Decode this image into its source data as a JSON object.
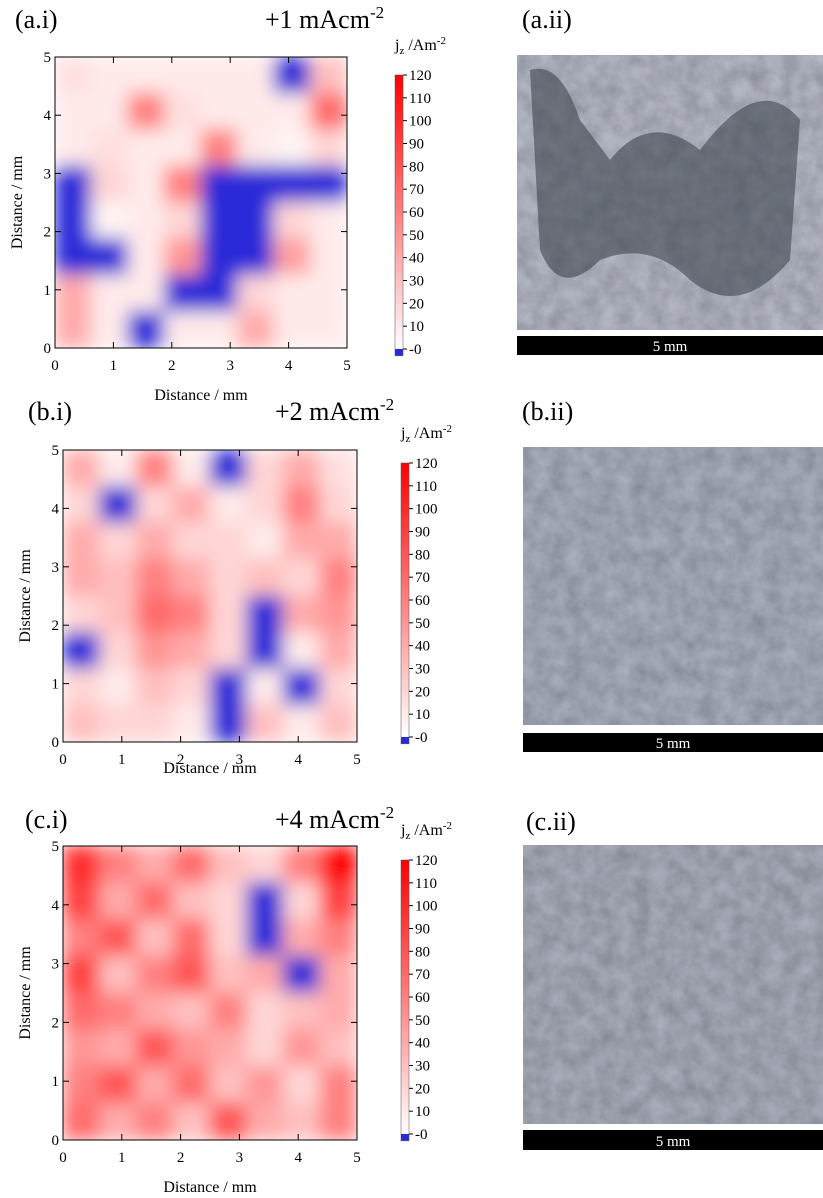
{
  "chart_data": [
    {
      "type": "heatmap",
      "panel_label": "(a.i)",
      "title": "+1 mAcm",
      "title_superscript": "-2",
      "xlabel": "Distance / mm",
      "ylabel": "Distance / mm",
      "xlim": [
        0,
        5
      ],
      "ylim": [
        0,
        5
      ],
      "xticks": [
        0,
        1,
        2,
        3,
        4,
        5
      ],
      "yticks": [
        0,
        1,
        2,
        3,
        4,
        5
      ],
      "z": [
        [
          15,
          10,
          10,
          10,
          10,
          10,
          -5,
          30
        ],
        [
          10,
          10,
          60,
          15,
          10,
          10,
          10,
          70
        ],
        [
          10,
          15,
          10,
          10,
          60,
          10,
          5,
          20
        ],
        [
          -8,
          20,
          10,
          60,
          -4,
          -10,
          -10,
          -8
        ],
        [
          -10,
          5,
          10,
          20,
          -5,
          -8,
          20,
          10
        ],
        [
          -8,
          -5,
          10,
          50,
          -5,
          -5,
          45,
          10
        ],
        [
          40,
          10,
          10,
          -5,
          -5,
          20,
          10,
          10
        ],
        [
          40,
          10,
          -3,
          10,
          10,
          40,
          10,
          10
        ]
      ],
      "colorbar": {
        "label": "j",
        "label_subscript": "z",
        "label_unit": " /Am",
        "label_superscript": "-2",
        "clim": [
          -3,
          120
        ],
        "ticks": [
          {
            "value": 0,
            "label": "-0"
          },
          10,
          20,
          30,
          40,
          50,
          60,
          70,
          80,
          90,
          100,
          110,
          120
        ],
        "colors": [
          "#2a2ad8",
          "#ffffff",
          "#ff0000"
        ]
      }
    },
    {
      "type": "heatmap",
      "panel_label": "(b.i)",
      "title": "+2 mAcm",
      "title_superscript": "-2",
      "xlabel": "Distance / mm",
      "ylabel": "Distance / mm",
      "xlim": [
        0,
        5
      ],
      "ylim": [
        0,
        5
      ],
      "xticks": [
        0,
        1,
        2,
        3,
        4,
        5
      ],
      "yticks": [
        0,
        1,
        2,
        3,
        4,
        5
      ],
      "z": [
        [
          40,
          10,
          60,
          10,
          -10,
          20,
          40,
          15
        ],
        [
          20,
          -10,
          20,
          40,
          10,
          20,
          60,
          20
        ],
        [
          40,
          20,
          40,
          20,
          20,
          10,
          40,
          40
        ],
        [
          40,
          30,
          60,
          40,
          20,
          30,
          20,
          60
        ],
        [
          20,
          30,
          70,
          60,
          20,
          -8,
          40,
          50
        ],
        [
          -5,
          20,
          50,
          40,
          20,
          -8,
          10,
          40
        ],
        [
          20,
          10,
          30,
          20,
          -8,
          10,
          -3,
          20
        ],
        [
          30,
          20,
          20,
          10,
          -8,
          30,
          10,
          30
        ]
      ],
      "colorbar": {
        "label": "j",
        "label_subscript": "z",
        "label_unit": " /Am",
        "label_superscript": "-2",
        "clim": [
          -3,
          120
        ],
        "ticks": [
          {
            "value": 0,
            "label": "-0"
          },
          10,
          20,
          30,
          40,
          50,
          60,
          70,
          80,
          90,
          100,
          110,
          120
        ],
        "colors": [
          "#2a2ad8",
          "#ffffff",
          "#ff0000"
        ]
      }
    },
    {
      "type": "heatmap",
      "panel_label": "(c.i)",
      "title": "+4 mAcm",
      "title_superscript": "-2",
      "xlabel": "Distance / mm",
      "ylabel": "Distance / mm",
      "xlim": [
        0,
        5
      ],
      "ylim": [
        0,
        5
      ],
      "xticks": [
        0,
        1,
        2,
        3,
        4,
        5
      ],
      "yticks": [
        0,
        1,
        2,
        3,
        4,
        5
      ],
      "z": [
        [
          100,
          60,
          40,
          70,
          30,
          20,
          60,
          120
        ],
        [
          90,
          40,
          70,
          30,
          20,
          -5,
          20,
          90
        ],
        [
          60,
          80,
          30,
          70,
          20,
          -5,
          40,
          60
        ],
        [
          90,
          30,
          60,
          80,
          30,
          40,
          -8,
          40
        ],
        [
          70,
          60,
          40,
          30,
          60,
          20,
          30,
          40
        ],
        [
          50,
          40,
          80,
          50,
          40,
          20,
          50,
          30
        ],
        [
          60,
          80,
          40,
          70,
          30,
          50,
          20,
          60
        ],
        [
          70,
          40,
          60,
          30,
          80,
          40,
          30,
          60
        ]
      ],
      "colorbar": {
        "label": "j",
        "label_subscript": "z",
        "label_unit": " /Am",
        "label_superscript": "-2",
        "clim": [
          -3,
          120
        ],
        "ticks": [
          {
            "value": 0,
            "label": "-0"
          },
          10,
          20,
          30,
          40,
          50,
          60,
          70,
          80,
          90,
          100,
          110,
          120
        ],
        "colors": [
          "#2a2ad8",
          "#ffffff",
          "#ff0000"
        ]
      }
    }
  ],
  "photos": [
    {
      "label": "(a.ii)",
      "scale_bar": "5 mm"
    },
    {
      "label": "(b.ii)",
      "scale_bar": "5 mm"
    },
    {
      "label": "(c.ii)",
      "scale_bar": "5 mm"
    }
  ]
}
